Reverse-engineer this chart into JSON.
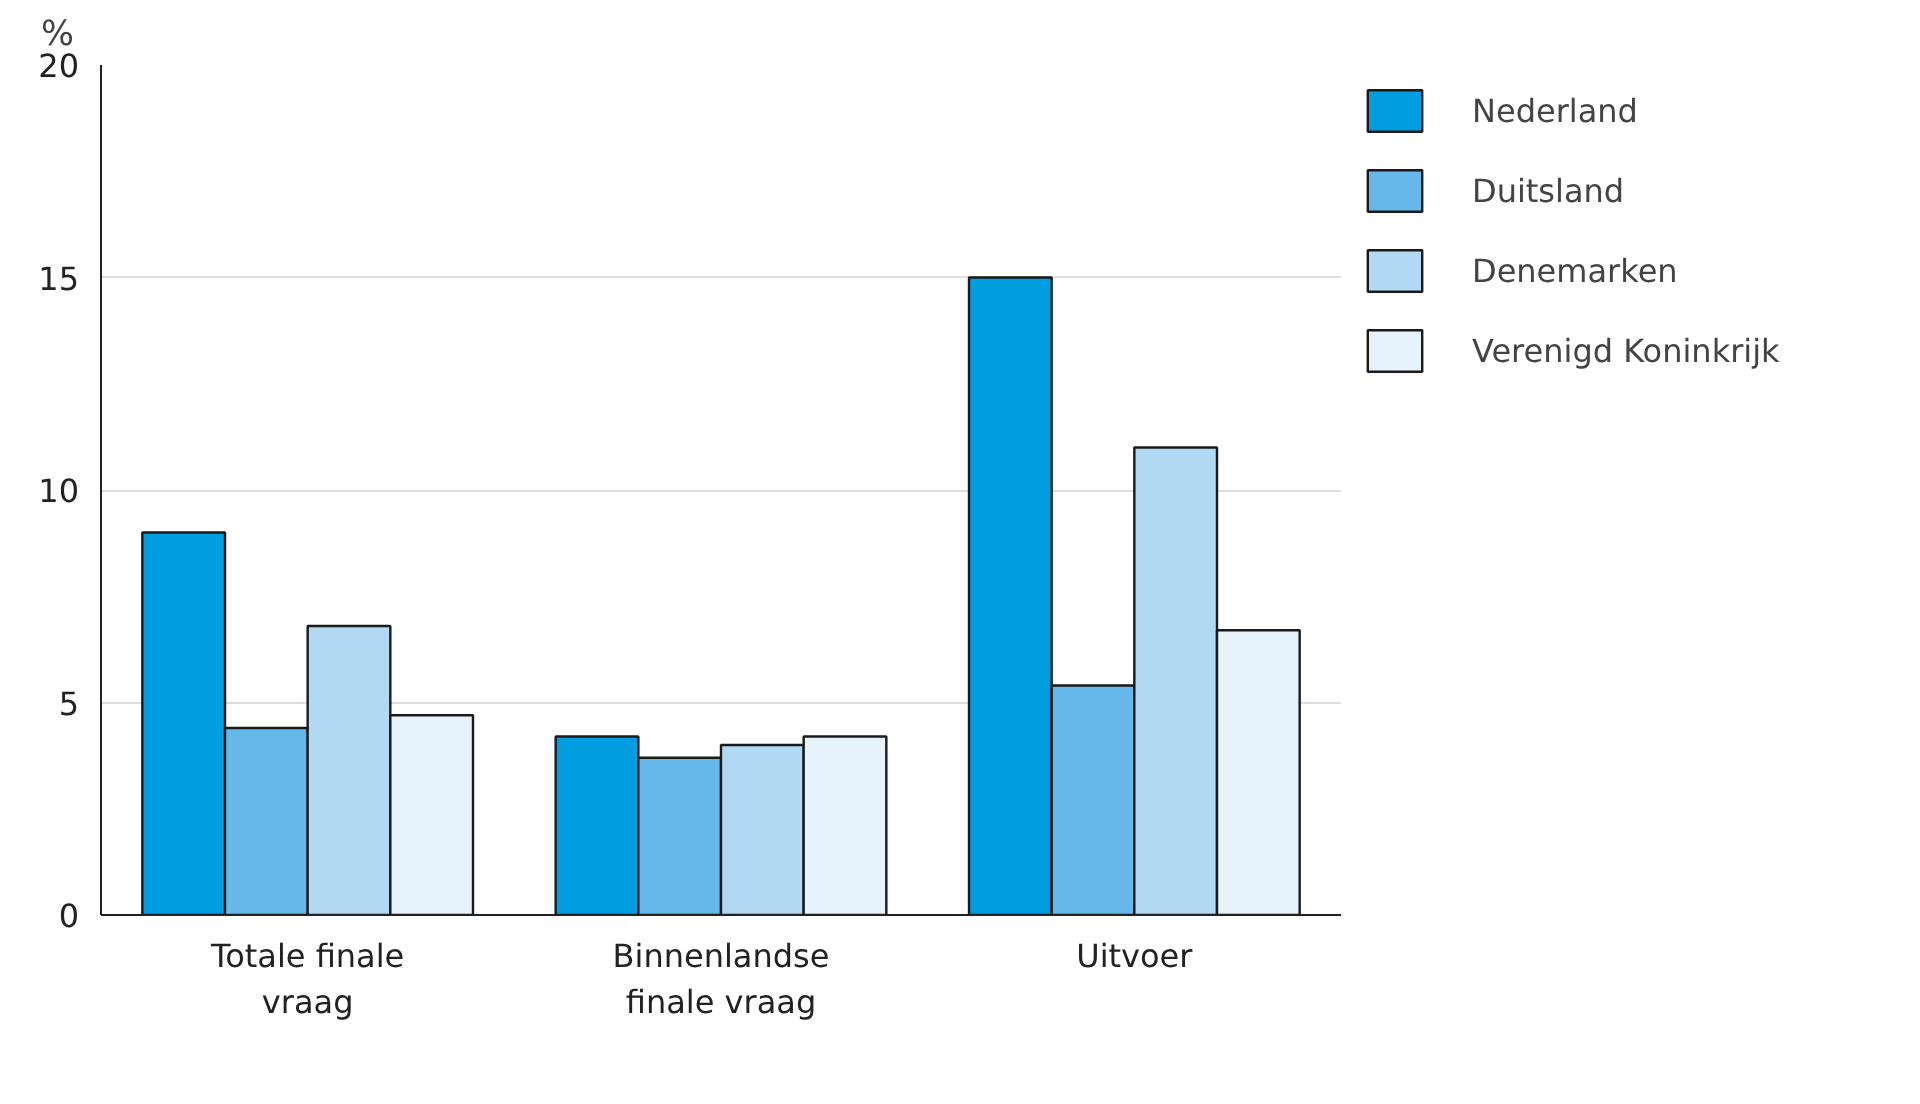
{
  "chart_data": {
    "type": "bar",
    "ylabel": "%",
    "categories": [
      "Totale finale\nvraag",
      "Binnenlandse\nfinale vraag",
      "Uitvoer"
    ],
    "series": [
      {
        "name": "Nederland",
        "color": "#009ee0",
        "values": [
          9.0,
          4.2,
          15.0
        ]
      },
      {
        "name": "Duitsland",
        "color": "#66b8ea",
        "values": [
          4.4,
          3.7,
          5.4
        ]
      },
      {
        "name": "Denemarken",
        "color": "#b2d9f4",
        "values": [
          6.8,
          4.0,
          11.0
        ]
      },
      {
        "name": "Verenigd Koninkrijk",
        "color": "#e6f2fc",
        "values": [
          4.7,
          4.2,
          6.7
        ]
      }
    ],
    "ylim": [
      0,
      20
    ],
    "yticks": [
      0,
      5,
      10,
      15,
      20
    ],
    "grid": "y",
    "legend": "top right"
  }
}
